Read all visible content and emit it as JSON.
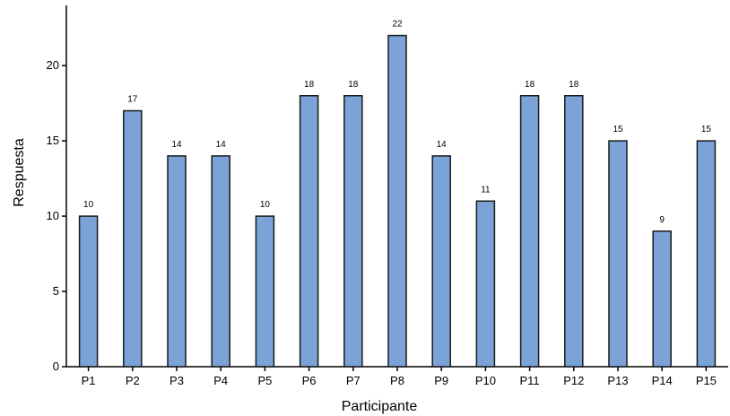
{
  "chart_data": {
    "type": "bar",
    "title": "",
    "xlabel": "Participante",
    "ylabel": "Respuesta",
    "categories": [
      "P1",
      "P2",
      "P3",
      "P4",
      "P5",
      "P6",
      "P7",
      "P8",
      "P9",
      "P10",
      "P11",
      "P12",
      "P13",
      "P14",
      "P15"
    ],
    "values": [
      10,
      17,
      14,
      14,
      10,
      18,
      18,
      22,
      14,
      11,
      18,
      18,
      15,
      9,
      15
    ],
    "ylim": [
      0,
      24
    ],
    "yticks": [
      0,
      5,
      10,
      15,
      20
    ],
    "grid": false,
    "legend": "none",
    "bar_color": "#7ba3d8",
    "bar_edge_color": "#1a1a1a"
  }
}
